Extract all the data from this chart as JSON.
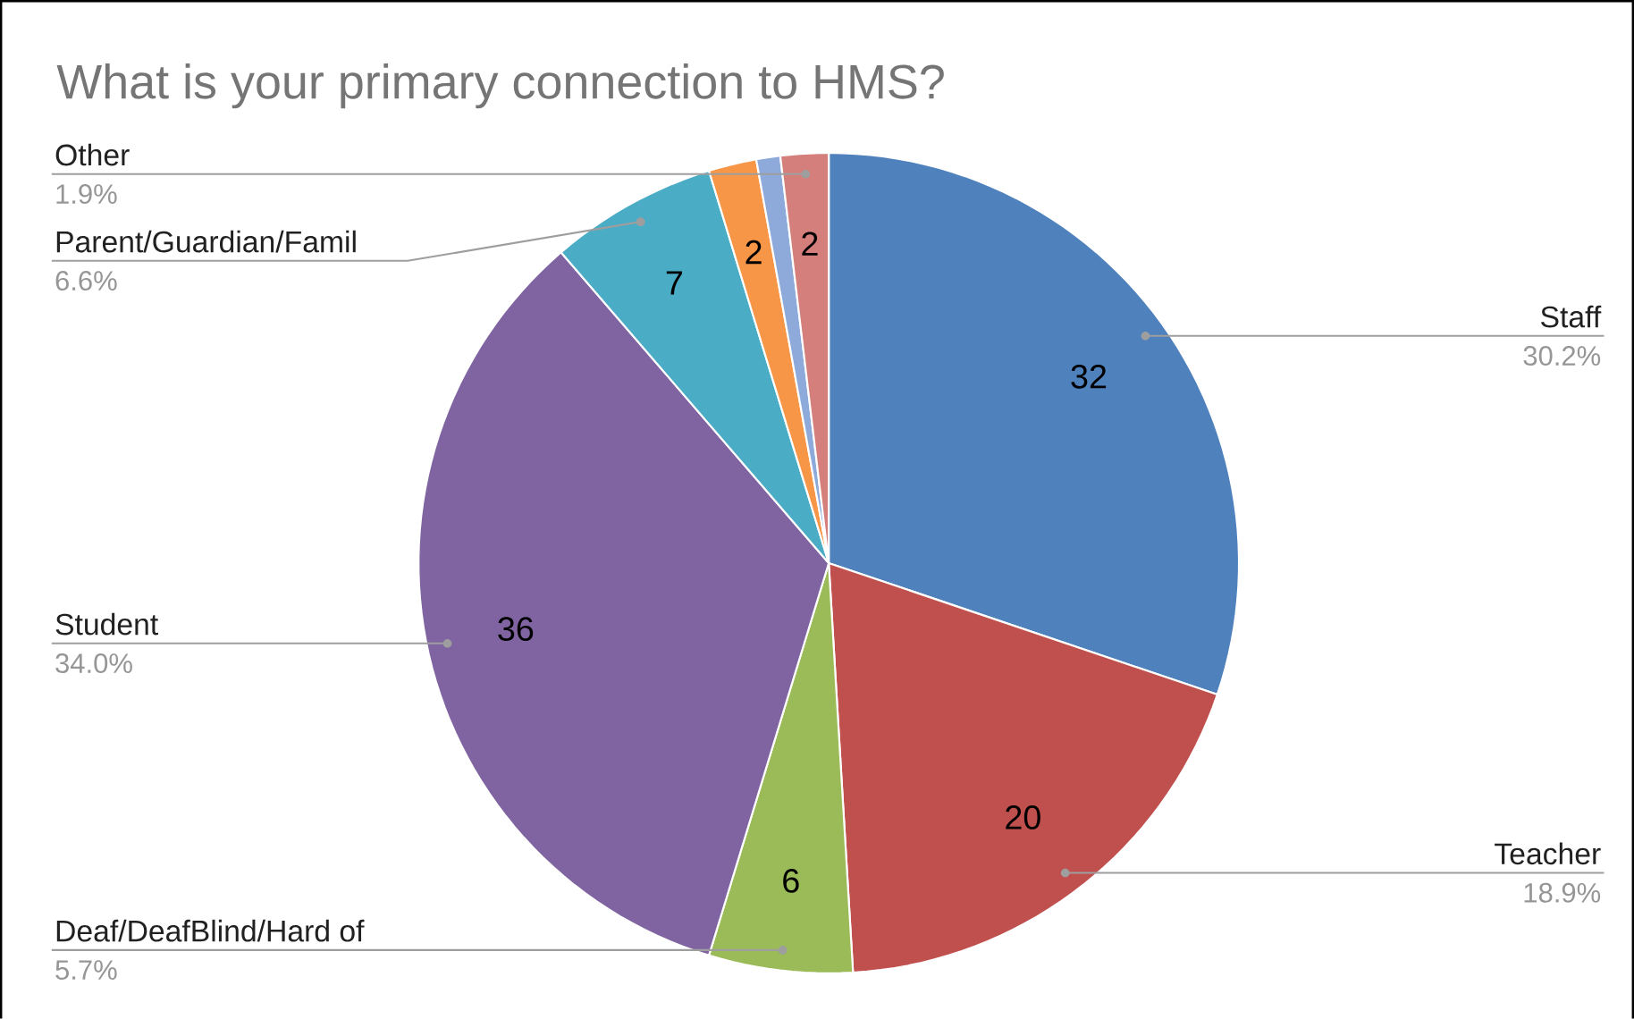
{
  "chart_data": {
    "type": "pie",
    "title": "What is your primary connection to HMS?",
    "categories": [
      "Staff",
      "Teacher",
      "Deaf/DeafBlind/Hard of",
      "Student",
      "Parent/Guardian/Famil",
      null,
      null,
      "Other"
    ],
    "values": [
      32,
      20,
      6,
      36,
      7,
      2,
      1,
      2
    ],
    "value_labels": [
      "32",
      "20",
      "6",
      "36",
      "7",
      "2",
      null,
      "2"
    ],
    "colors": [
      "#4f81bd",
      "#c0504d",
      "#9bbb59",
      "#8064a2",
      "#4bacc6",
      "#f79646",
      "#8eaadb",
      "#d47f7c"
    ],
    "annotations": [
      {
        "text": "30.2%",
        "x": "Staff"
      },
      {
        "text": "18.9%",
        "x": "Teacher"
      },
      {
        "text": "5.7%",
        "x": "Deaf/DeafBlind/Hard of"
      },
      {
        "text": "34.0%",
        "x": "Student"
      },
      {
        "text": "6.6%",
        "x": "Parent/Guardian/Famil"
      },
      {
        "text": "1.9%",
        "x": "Other"
      }
    ]
  }
}
